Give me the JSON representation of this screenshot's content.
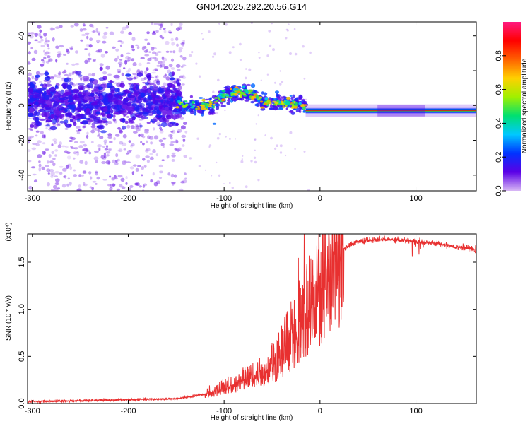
{
  "title": "GN04.2025.292.20.56.G14",
  "chart_data": [
    {
      "type": "heatmap",
      "xlabel": "Height of straight line (km)",
      "ylabel": "Frequency (Hz)",
      "xlim": [
        -305,
        163
      ],
      "ylim": [
        -49,
        48
      ],
      "xticks": [
        -300,
        -200,
        -100,
        0,
        100
      ],
      "yticks": [
        -40,
        -20,
        0,
        20,
        40
      ],
      "colorbar": {
        "label": "Normalized spectral amplitude",
        "range": [
          0,
          1
        ],
        "ticks": [
          0.0,
          0.2,
          0.4,
          0.6,
          0.8
        ],
        "colormap": [
          "#d8b8f5",
          "#5a00e6",
          "#0033ff",
          "#00c8ff",
          "#00e070",
          "#a0f000",
          "#ffd000",
          "#ff6000",
          "#ff0000",
          "#ff1a80"
        ]
      },
      "features": {
        "noise_region_x": [
          -305,
          -150
        ],
        "scatter_region_x": [
          -150,
          -15
        ],
        "tone_region_x": [
          -15,
          163
        ],
        "tone_frequency": -3
      }
    },
    {
      "type": "line",
      "xlabel": "Height of straight line (km)",
      "ylabel": "SNR (10 * v/v)",
      "yscale_label": "(x10⁴)",
      "xlim": [
        -305,
        163
      ],
      "ylim": [
        0,
        1.8
      ],
      "xticks": [
        -300,
        -200,
        -100,
        0,
        100
      ],
      "yticks": [
        "0.0",
        "0.5",
        "1.0",
        "1.5"
      ],
      "line_color": "#e83030",
      "x": [
        -305,
        -250,
        -200,
        -150,
        -130,
        -110,
        -100,
        -90,
        -80,
        -70,
        -60,
        -50,
        -40,
        -30,
        -20,
        -10,
        0,
        10,
        20,
        30,
        40,
        60,
        80,
        100,
        120,
        140,
        163
      ],
      "y": [
        0.02,
        0.03,
        0.04,
        0.05,
        0.08,
        0.12,
        0.18,
        0.2,
        0.25,
        0.28,
        0.35,
        0.4,
        0.55,
        0.7,
        0.85,
        1.05,
        1.2,
        1.5,
        1.6,
        1.68,
        1.72,
        1.74,
        1.74,
        1.72,
        1.7,
        1.67,
        1.63
      ]
    }
  ]
}
